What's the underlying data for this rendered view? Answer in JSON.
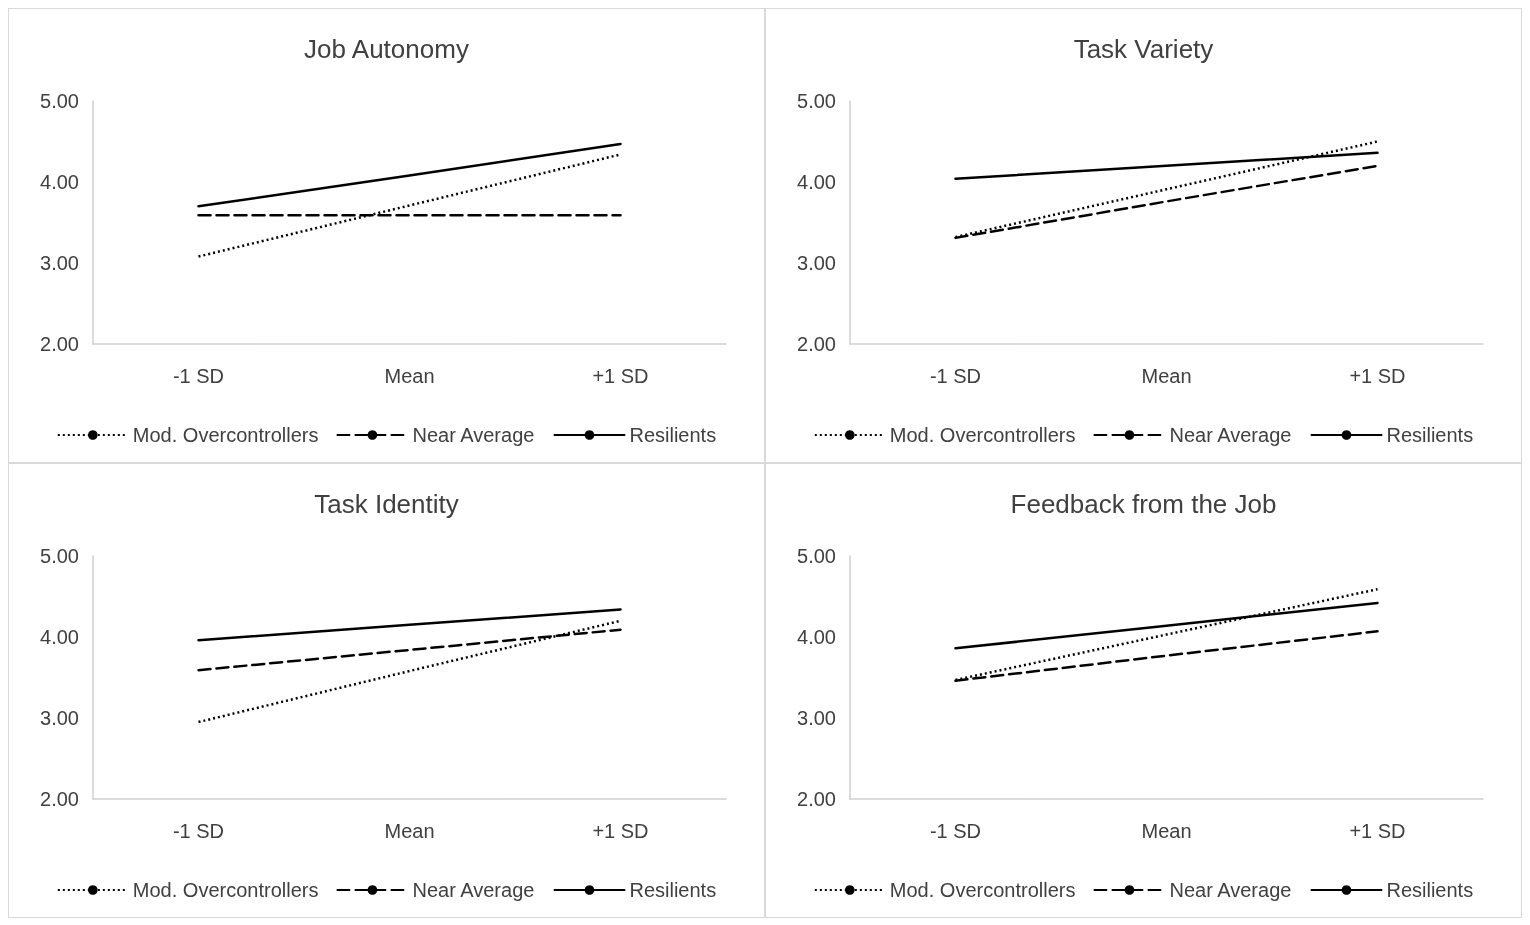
{
  "chart_data": [
    {
      "type": "line",
      "title": "Job Autonomy",
      "categories": [
        "-1 SD",
        "Mean",
        "+1 SD"
      ],
      "ylim": [
        2,
        5
      ],
      "yticks": [
        {
          "value": 2,
          "label": "2.00"
        },
        {
          "value": 3,
          "label": "3.00"
        },
        {
          "value": 4,
          "label": "4.00"
        },
        {
          "value": 5,
          "label": "5.00"
        }
      ],
      "grid": false,
      "legend": "bottom",
      "marker": "none",
      "series": [
        {
          "name": "Mod. Overcontrollers",
          "color": "#000000",
          "line_style": "dotted",
          "values": [
            3.08,
            3.71,
            4.34
          ]
        },
        {
          "name": "Near Average",
          "color": "#000000",
          "line_style": "dashed",
          "values": [
            3.59,
            3.59,
            3.59
          ]
        },
        {
          "name": "Resilients",
          "color": "#000000",
          "line_style": "solid",
          "values": [
            3.7,
            4.08,
            4.47
          ]
        }
      ]
    },
    {
      "type": "line",
      "title": "Task Variety",
      "categories": [
        "-1 SD",
        "Mean",
        "+1 SD"
      ],
      "ylim": [
        2,
        5
      ],
      "yticks": [
        {
          "value": 2,
          "label": "2.00"
        },
        {
          "value": 3,
          "label": "3.00"
        },
        {
          "value": 4,
          "label": "4.00"
        },
        {
          "value": 5,
          "label": "5.00"
        }
      ],
      "grid": false,
      "legend": "bottom",
      "marker": "none",
      "series": [
        {
          "name": "Mod. Overcontrollers",
          "color": "#000000",
          "line_style": "dotted",
          "values": [
            3.32,
            3.91,
            4.5
          ]
        },
        {
          "name": "Near Average",
          "color": "#000000",
          "line_style": "dashed",
          "values": [
            3.31,
            3.76,
            4.2
          ]
        },
        {
          "name": "Resilients",
          "color": "#000000",
          "line_style": "solid",
          "values": [
            4.04,
            4.2,
            4.36
          ]
        }
      ]
    },
    {
      "type": "line",
      "title": "Task Identity",
      "categories": [
        "-1 SD",
        "Mean",
        "+1 SD"
      ],
      "ylim": [
        2,
        5
      ],
      "yticks": [
        {
          "value": 2,
          "label": "2.00"
        },
        {
          "value": 3,
          "label": "3.00"
        },
        {
          "value": 4,
          "label": "4.00"
        },
        {
          "value": 5,
          "label": "5.00"
        }
      ],
      "grid": false,
      "legend": "bottom",
      "marker": "none",
      "series": [
        {
          "name": "Mod. Overcontrollers",
          "color": "#000000",
          "line_style": "dotted",
          "values": [
            2.95,
            3.58,
            4.2
          ]
        },
        {
          "name": "Near Average",
          "color": "#000000",
          "line_style": "dashed",
          "values": [
            3.59,
            3.84,
            4.09
          ]
        },
        {
          "name": "Resilients",
          "color": "#000000",
          "line_style": "solid",
          "values": [
            3.96,
            4.15,
            4.34
          ]
        }
      ]
    },
    {
      "type": "line",
      "title": "Feedback from the Job",
      "categories": [
        "-1 SD",
        "Mean",
        "+1 SD"
      ],
      "ylim": [
        2,
        5
      ],
      "yticks": [
        {
          "value": 2,
          "label": "2.00"
        },
        {
          "value": 3,
          "label": "3.00"
        },
        {
          "value": 4,
          "label": "4.00"
        },
        {
          "value": 5,
          "label": "5.00"
        }
      ],
      "grid": false,
      "legend": "bottom",
      "marker": "none",
      "series": [
        {
          "name": "Mod. Overcontrollers",
          "color": "#000000",
          "line_style": "dotted",
          "values": [
            3.47,
            4.03,
            4.59
          ]
        },
        {
          "name": "Near Average",
          "color": "#000000",
          "line_style": "dashed",
          "values": [
            3.46,
            3.77,
            4.07
          ]
        },
        {
          "name": "Resilients",
          "color": "#000000",
          "line_style": "solid",
          "values": [
            3.86,
            4.14,
            4.42
          ]
        }
      ]
    }
  ]
}
